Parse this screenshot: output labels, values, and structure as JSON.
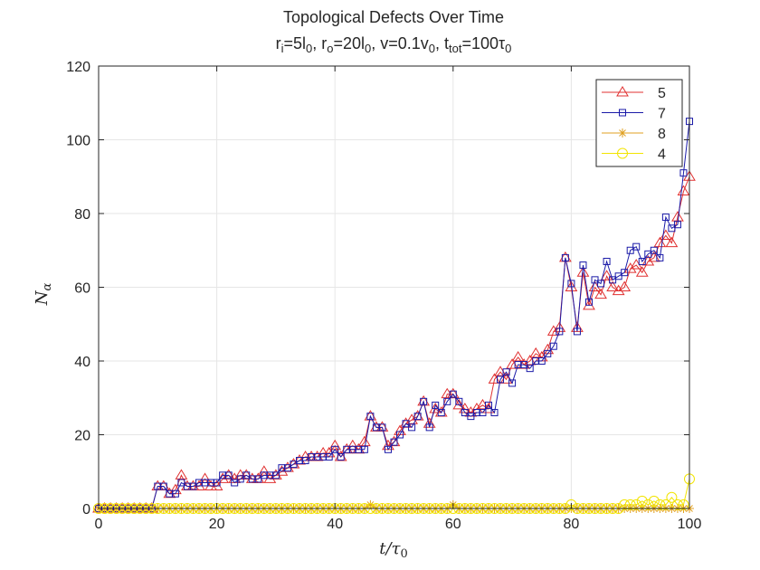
{
  "chart_data": {
    "type": "line",
    "title": "Topological Defects Over Time",
    "subtitle_parts": [
      {
        "t": "r",
        "s": "n"
      },
      {
        "t": "i",
        "s": "sub"
      },
      {
        "t": "=5l",
        "s": "n"
      },
      {
        "t": "0",
        "s": "sub"
      },
      {
        "t": ", r",
        "s": "n"
      },
      {
        "t": "o",
        "s": "sub"
      },
      {
        "t": "=20l",
        "s": "n"
      },
      {
        "t": "0",
        "s": "sub"
      },
      {
        "t": ", v=0.1v",
        "s": "n"
      },
      {
        "t": "0",
        "s": "sub"
      },
      {
        "t": ", t",
        "s": "n"
      },
      {
        "t": "tot",
        "s": "sub"
      },
      {
        "t": "=100τ",
        "s": "n"
      },
      {
        "t": "0",
        "s": "sub"
      }
    ],
    "xlabel_main": "t/τ",
    "xlabel_sub": "0",
    "ylabel_main": "N",
    "ylabel_sub": "α",
    "xlim": [
      0,
      100
    ],
    "ylim": [
      0,
      120
    ],
    "xticks": [
      0,
      20,
      40,
      60,
      80,
      100
    ],
    "yticks": [
      0,
      20,
      40,
      60,
      80,
      100,
      120
    ],
    "grid": true,
    "legend_position": "top-right",
    "x": [
      0,
      1,
      2,
      3,
      4,
      5,
      6,
      7,
      8,
      9,
      10,
      11,
      12,
      13,
      14,
      15,
      16,
      17,
      18,
      19,
      20,
      21,
      22,
      23,
      24,
      25,
      26,
      27,
      28,
      29,
      30,
      31,
      32,
      33,
      34,
      35,
      36,
      37,
      38,
      39,
      40,
      41,
      42,
      43,
      44,
      45,
      46,
      47,
      48,
      49,
      50,
      51,
      52,
      53,
      54,
      55,
      56,
      57,
      58,
      59,
      60,
      61,
      62,
      63,
      64,
      65,
      66,
      67,
      68,
      69,
      70,
      71,
      72,
      73,
      74,
      75,
      76,
      77,
      78,
      79,
      80,
      81,
      82,
      83,
      84,
      85,
      86,
      87,
      88,
      89,
      90,
      91,
      92,
      93,
      94,
      95,
      96,
      97,
      98,
      99,
      100
    ],
    "series": [
      {
        "name": "5",
        "color": "#e03030",
        "marker": "triangle",
        "values": [
          0,
          0,
          0,
          0,
          0,
          0,
          0,
          0,
          0,
          0,
          6,
          6,
          4,
          5,
          9,
          6,
          6,
          6,
          8,
          6,
          6,
          8,
          9,
          8,
          9,
          9,
          8,
          8,
          10,
          8,
          9,
          10,
          11,
          12,
          13,
          14,
          14,
          14,
          15,
          15,
          17,
          14,
          16,
          17,
          16,
          18,
          25,
          22,
          22,
          17,
          18,
          21,
          23,
          24,
          25,
          29,
          23,
          27,
          26,
          31,
          31,
          28,
          27,
          26,
          27,
          28,
          27,
          35,
          37,
          35,
          39,
          41,
          39,
          40,
          42,
          41,
          43,
          48,
          49,
          68,
          60,
          49,
          64,
          55,
          60,
          58,
          63,
          60,
          59,
          60,
          65,
          66,
          64,
          67,
          68,
          72,
          74,
          72,
          79,
          86,
          90
        ]
      },
      {
        "name": "7",
        "color": "#1a1aa8",
        "marker": "square",
        "values": [
          0,
          0,
          0,
          0,
          0,
          0,
          0,
          0,
          0,
          0,
          6,
          6,
          4,
          4,
          7,
          6,
          6,
          7,
          7,
          7,
          7,
          9,
          9,
          7,
          8,
          9,
          8,
          8,
          9,
          9,
          9,
          11,
          11,
          12,
          13,
          13,
          14,
          14,
          14,
          14,
          16,
          14,
          16,
          16,
          16,
          16,
          25,
          22,
          22,
          16,
          18,
          20,
          23,
          22,
          25,
          29,
          22,
          28,
          26,
          29,
          31,
          29,
          26,
          25,
          26,
          26,
          28,
          26,
          35,
          37,
          34,
          39,
          39,
          38,
          40,
          40,
          42,
          44,
          48,
          68,
          61,
          48,
          66,
          56,
          62,
          61,
          67,
          62,
          63,
          64,
          70,
          71,
          67,
          69,
          70,
          68,
          79,
          76,
          77,
          91,
          105
        ]
      },
      {
        "name": "8",
        "color": "#e0a020",
        "marker": "star",
        "values": [
          0,
          0,
          0,
          0,
          0,
          0,
          0,
          0,
          0,
          0,
          0,
          0,
          0,
          0,
          0,
          0,
          0,
          0,
          0,
          0,
          0,
          0,
          0,
          0,
          0,
          0,
          0,
          0,
          0,
          0,
          0,
          0,
          0,
          0,
          0,
          0,
          0,
          0,
          0,
          0,
          0,
          0,
          0,
          0,
          0,
          0,
          1,
          0,
          0,
          0,
          0,
          0,
          0,
          0,
          0,
          0,
          0,
          0,
          0,
          0,
          1,
          0,
          0,
          0,
          0,
          0,
          0,
          0,
          0,
          0,
          0,
          0,
          0,
          0,
          0,
          0,
          0,
          0,
          0,
          0,
          0,
          0,
          0,
          0,
          0,
          0,
          0,
          0,
          0,
          0,
          0,
          0,
          0,
          0,
          0,
          0,
          0,
          0,
          0,
          0,
          0
        ]
      },
      {
        "name": "4",
        "color": "#f2e400",
        "marker": "circle",
        "values": [
          0,
          0,
          0,
          0,
          0,
          0,
          0,
          0,
          0,
          0,
          0,
          0,
          0,
          0,
          0,
          0,
          0,
          0,
          0,
          0,
          0,
          0,
          0,
          0,
          0,
          0,
          0,
          0,
          0,
          0,
          0,
          0,
          0,
          0,
          0,
          0,
          0,
          0,
          0,
          0,
          0,
          0,
          0,
          0,
          0,
          0,
          0,
          0,
          0,
          0,
          0,
          0,
          0,
          0,
          0,
          0,
          0,
          0,
          0,
          0,
          0,
          0,
          0,
          0,
          0,
          0,
          0,
          0,
          0,
          0,
          0,
          0,
          0,
          0,
          0,
          0,
          0,
          0,
          0,
          0,
          1,
          0,
          0,
          0,
          0,
          0,
          0,
          0,
          0,
          1,
          1,
          1,
          2,
          1,
          2,
          1,
          1,
          3,
          1,
          1,
          8
        ]
      }
    ]
  }
}
